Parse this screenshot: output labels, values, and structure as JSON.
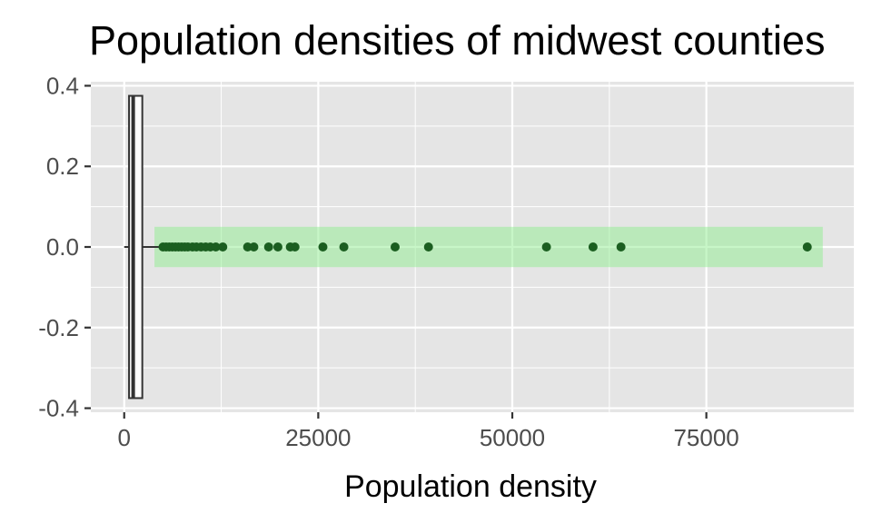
{
  "chart_data": {
    "type": "box",
    "title": "Population densities of midwest counties",
    "xlabel": "Population density",
    "ylabel": "",
    "xlim": [
      -4300,
      94000
    ],
    "ylim": [
      -0.41,
      0.41
    ],
    "x_ticks": [
      0,
      25000,
      50000,
      75000
    ],
    "y_ticks": [
      0.4,
      0.2,
      0.0,
      -0.2,
      -0.4
    ],
    "y_tick_labels": [
      "0.4",
      "0.2",
      "0.0",
      "-0.2",
      "-0.4"
    ],
    "box": {
      "q1": 622,
      "median": 1156,
      "q3": 2330,
      "whisker_low": 0,
      "whisker_high": 4900,
      "y_range": [
        -0.375,
        0.375
      ]
    },
    "highlight": {
      "x_range": [
        3900,
        90000
      ],
      "y_range": [
        -0.05,
        0.05
      ],
      "color": "#90ee90"
    },
    "outliers": {
      "y": 0.0,
      "x": [
        5000,
        5400,
        5800,
        6200,
        6600,
        7000,
        7400,
        7800,
        8200,
        8800,
        9300,
        9900,
        10500,
        11100,
        11800,
        12700,
        15900,
        16700,
        18600,
        19800,
        21400,
        22000,
        25600,
        28300,
        34900,
        39200,
        54400,
        60400,
        64000,
        88000
      ],
      "color": "#1b5e20"
    },
    "grid": true,
    "panel_background": "#e5e5e5",
    "grid_color": "#ffffff"
  }
}
